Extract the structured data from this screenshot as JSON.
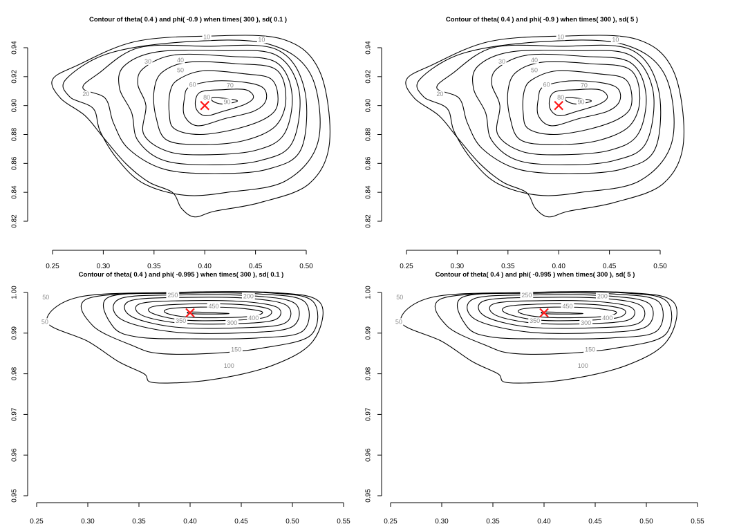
{
  "chart_data": [
    {
      "type": "contour",
      "title": "Contour of theta( 0.4 ) and phi( -0.9 ) when times( 300 ), sd( 0.1 )",
      "xlabel": "",
      "ylabel": "",
      "xlim": [
        0.25,
        0.5
      ],
      "ylim": [
        0.82,
        0.94
      ],
      "x_ticks": [
        "0.25",
        "0.30",
        "0.35",
        "0.40",
        "0.45",
        "0.50"
      ],
      "y_ticks": [
        "0.82",
        "0.84",
        "0.86",
        "0.88",
        "0.90",
        "0.92",
        "0.94"
      ],
      "marker": {
        "x": 0.4,
        "y": 0.9,
        "symbol": "x",
        "color": "#ff1a1a"
      },
      "peak": {
        "x": 0.415,
        "y": 0.902
      },
      "contour_levels": [
        "10",
        "10",
        "20",
        "30",
        "40",
        "50",
        "60",
        "70",
        "80",
        "90"
      ],
      "grid": false
    },
    {
      "type": "contour",
      "title": "Contour of theta( 0.4 ) and phi( -0.9 ) when times( 300 ), sd( 5 )",
      "xlabel": "",
      "ylabel": "",
      "xlim": [
        0.25,
        0.5
      ],
      "ylim": [
        0.82,
        0.94
      ],
      "x_ticks": [
        "0.25",
        "0.30",
        "0.35",
        "0.40",
        "0.45",
        "0.50"
      ],
      "y_ticks": [
        "0.82",
        "0.84",
        "0.86",
        "0.88",
        "0.90",
        "0.92",
        "0.94"
      ],
      "marker": {
        "x": 0.4,
        "y": 0.9,
        "symbol": "x",
        "color": "#ff1a1a"
      },
      "peak": {
        "x": 0.415,
        "y": 0.902
      },
      "contour_levels": [
        "10",
        "10",
        "20",
        "30",
        "40",
        "50",
        "60",
        "70",
        "80",
        "90"
      ],
      "grid": false
    },
    {
      "type": "contour",
      "title": "Contour of theta( 0.4 ) and phi( -0.995 ) when times( 300 ), sd( 0.1 )",
      "xlabel": "",
      "ylabel": "",
      "xlim": [
        0.25,
        0.55
      ],
      "ylim": [
        0.95,
        1.0
      ],
      "x_ticks": [
        "0.25",
        "0.30",
        "0.35",
        "0.40",
        "0.45",
        "0.50",
        "0.55"
      ],
      "y_ticks": [
        "0.95",
        "0.96",
        "0.97",
        "0.98",
        "0.99",
        "1.00"
      ],
      "marker": {
        "x": 0.4,
        "y": 0.995,
        "symbol": "x",
        "color": "#ff1a1a"
      },
      "peak": {
        "x": 0.42,
        "y": 0.9948
      },
      "contour_levels": [
        "50",
        "50",
        "100",
        "150",
        "200",
        "250",
        "300",
        "350",
        "400",
        "450"
      ],
      "grid": false
    },
    {
      "type": "contour",
      "title": "Contour of theta( 0.4 ) and phi( -0.995 ) when times( 300 ), sd( 5 )",
      "xlabel": "",
      "ylabel": "",
      "xlim": [
        0.25,
        0.55
      ],
      "ylim": [
        0.95,
        1.0
      ],
      "x_ticks": [
        "0.25",
        "0.30",
        "0.35",
        "0.40",
        "0.45",
        "0.50",
        "0.55"
      ],
      "y_ticks": [
        "0.95",
        "0.96",
        "0.97",
        "0.98",
        "0.99",
        "1.00"
      ],
      "marker": {
        "x": 0.4,
        "y": 0.995,
        "symbol": "x",
        "color": "#ff1a1a"
      },
      "peak": {
        "x": 0.42,
        "y": 0.9948
      },
      "contour_levels": [
        "50",
        "50",
        "100",
        "150",
        "200",
        "250",
        "300",
        "350",
        "400",
        "450"
      ],
      "grid": false
    }
  ]
}
